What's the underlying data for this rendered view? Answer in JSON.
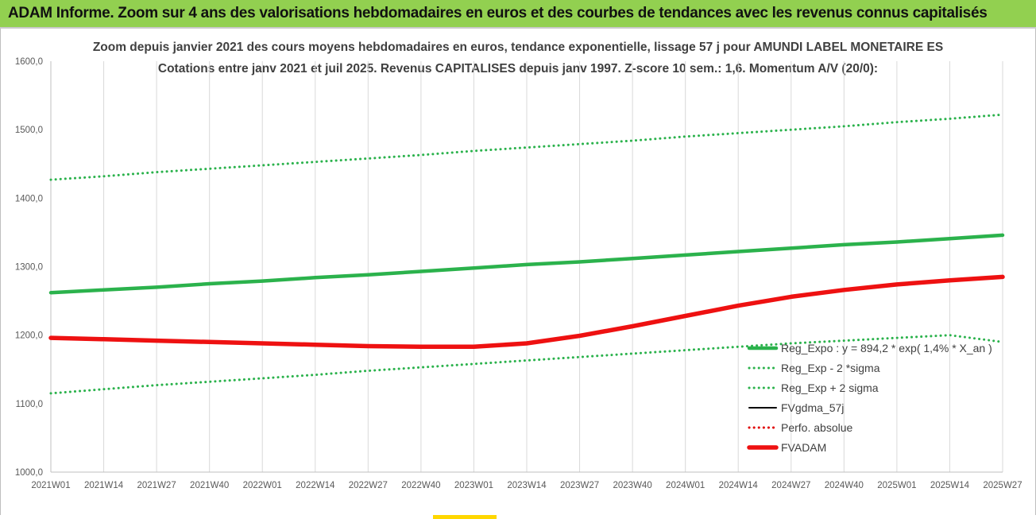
{
  "banner": {
    "title": "ADAM Informe. Zoom sur 4 ans des valorisations hebdomadaires en euros et des courbes de tendances avec les revenus connus capitalisés"
  },
  "chart_data": {
    "type": "line",
    "title": "Zoom depuis janvier 2021 des cours moyens hebdomadaires en euros, tendance exponentielle, lissage 57 j pour AMUNDI LABEL MONETAIRE ES",
    "subtitle": "Cotations entre janv 2021 et juil 2025. Revenus CAPITALISES depuis janv 1997. Z-score 10 sem.: 1,6. Momentum A/V (20/0):",
    "ylim": [
      1000,
      1600
    ],
    "y_ticks": [
      "1000,0",
      "1100,0",
      "1200,0",
      "1300,0",
      "1400,0",
      "1500,0",
      "1600,0"
    ],
    "x_ticks": [
      "2021W01",
      "2021W14",
      "2021W27",
      "2021W40",
      "2022W01",
      "2022W14",
      "2022W27",
      "2022W40",
      "2023W01",
      "2023W14",
      "2023W27",
      "2023W40",
      "2024W01",
      "2024W14",
      "2024W27",
      "2024W40",
      "2025W01",
      "2025W14",
      "2025W27"
    ],
    "grid": "vertical",
    "legend_position": "right",
    "series": [
      {
        "name": "Reg_Expo : y = 894,2 * exp( 1,4% * X_an )",
        "style": "solid-thick",
        "color": "#2bb24c",
        "values": [
          1262,
          1266,
          1270,
          1275,
          1279,
          1284,
          1288,
          1293,
          1298,
          1303,
          1307,
          1312,
          1317,
          1322,
          1327,
          1332,
          1336,
          1341,
          1346
        ]
      },
      {
        "name": "Reg_Exp - 2 *sigma",
        "style": "dotted",
        "color": "#2bb24c",
        "values": [
          1115,
          1121,
          1127,
          1132,
          1137,
          1142,
          1148,
          1153,
          1158,
          1163,
          1168,
          1173,
          1178,
          1183,
          1188,
          1192,
          1196,
          1200,
          1190
        ]
      },
      {
        "name": "Reg_Exp + 2 sigma",
        "style": "dotted",
        "color": "#2bb24c",
        "values": [
          1427,
          1432,
          1438,
          1443,
          1448,
          1453,
          1458,
          1463,
          1469,
          1474,
          1479,
          1484,
          1490,
          1495,
          1500,
          1505,
          1511,
          1516,
          1522
        ]
      },
      {
        "name": "FVgdma_57j",
        "style": "solid",
        "color": "#000000",
        "values": [
          1195,
          1193,
          1191,
          1190,
          1188,
          1186,
          1184,
          1183,
          1183,
          1188,
          1199,
          1213,
          1228,
          1243,
          1256,
          1266,
          1274,
          1280,
          1284
        ]
      },
      {
        "name": "Perfo. absolue",
        "style": "dotted",
        "color": "#e00000",
        "values": [
          1195,
          1193,
          1191,
          1190,
          1188,
          1186,
          1184,
          1183,
          1183,
          1188,
          1199,
          1213,
          1228,
          1243,
          1256,
          1266,
          1274,
          1280,
          1285
        ]
      },
      {
        "name": "FVADAM",
        "style": "solid-thick",
        "color": "#ee1111",
        "values": [
          1196,
          1194,
          1192,
          1190,
          1188,
          1186,
          1184,
          1183,
          1183,
          1188,
          1199,
          1213,
          1228,
          1243,
          1256,
          1266,
          1274,
          1280,
          1285
        ]
      }
    ]
  }
}
